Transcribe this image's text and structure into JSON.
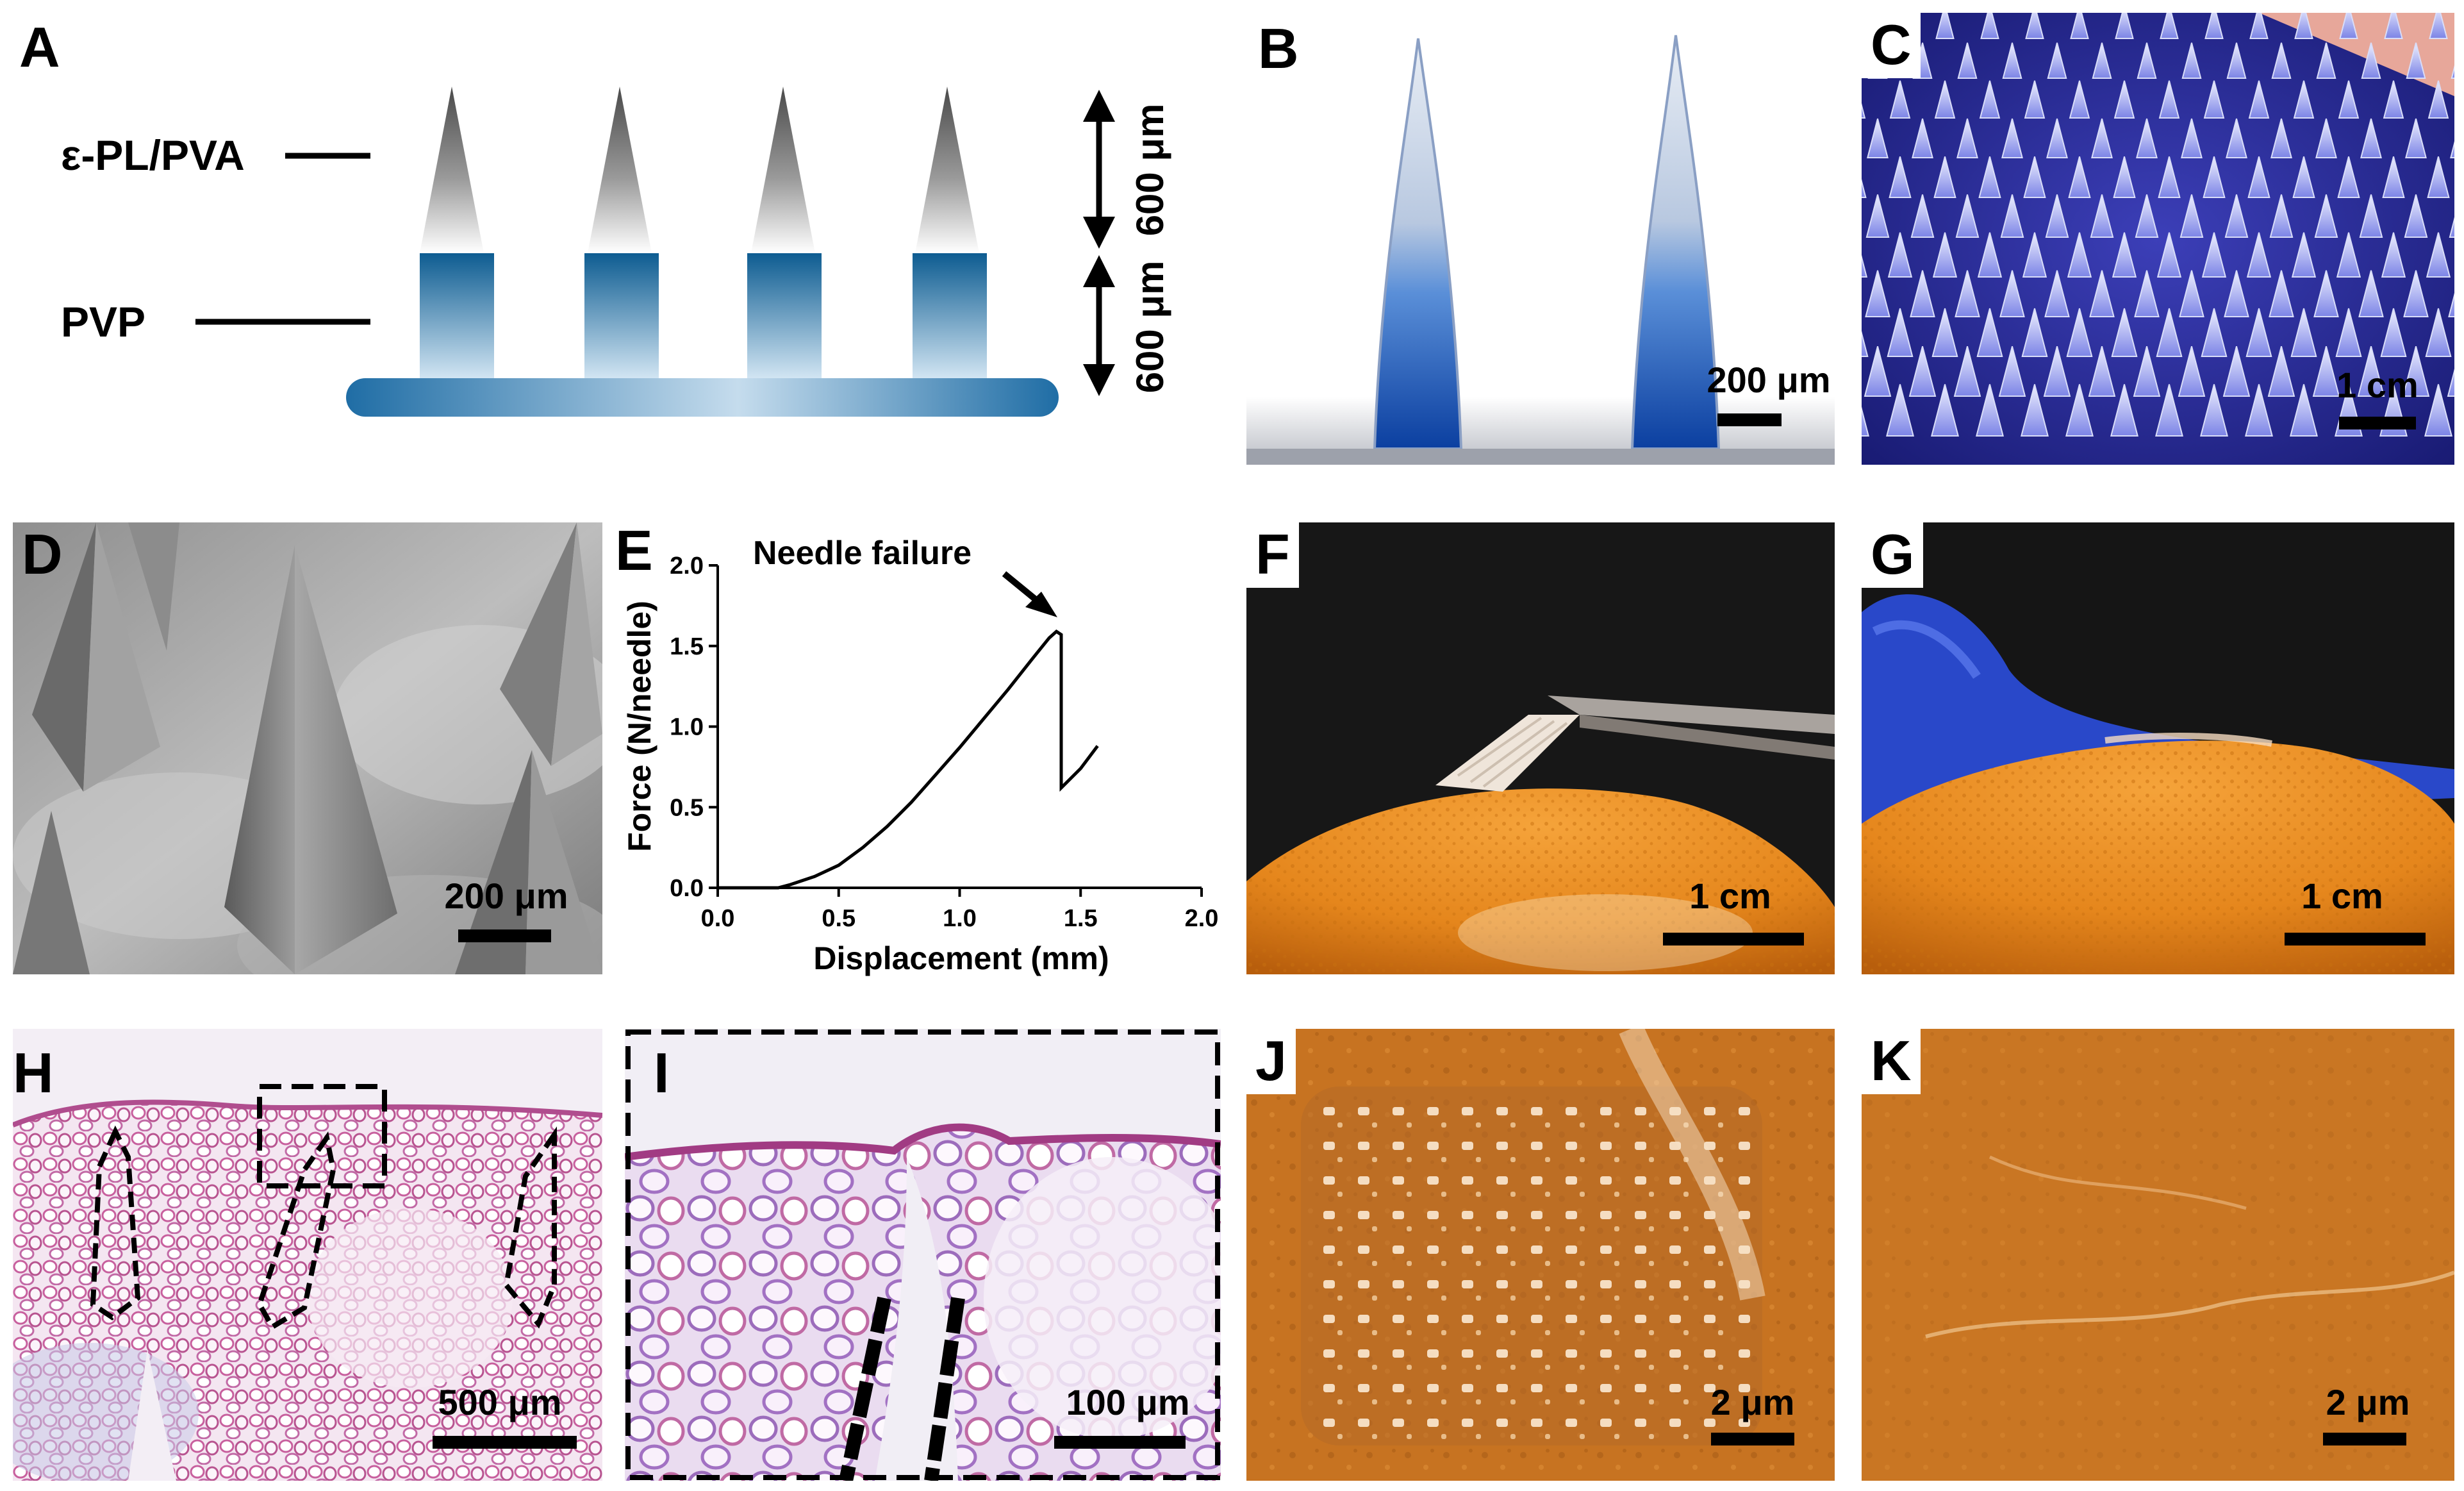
{
  "panels": {
    "a": {
      "letter": "A",
      "layer_top": "ε-PL/PVA",
      "layer_bottom": "PVP",
      "dim_top": "600 μm",
      "dim_bottom": "600 μm"
    },
    "b": {
      "letter": "B",
      "scale": "200 μm"
    },
    "c": {
      "letter": "C",
      "scale": "1 cm"
    },
    "d": {
      "letter": "D",
      "scale": "200 μm"
    },
    "e": {
      "letter": "E"
    },
    "f": {
      "letter": "F",
      "scale": "1 cm"
    },
    "g": {
      "letter": "G",
      "scale": "1 cm"
    },
    "h": {
      "letter": "H",
      "scale": "500 μm"
    },
    "i": {
      "letter": "I",
      "scale": "100 μm"
    },
    "j": {
      "letter": "J",
      "scale": "2 μm"
    },
    "k": {
      "letter": "K",
      "scale": "2 μm"
    }
  },
  "chart_data": {
    "type": "line",
    "xlabel": "Displacement (mm)",
    "ylabel": "Force (N/needle)",
    "xlim": [
      0,
      2
    ],
    "ylim": [
      0,
      2
    ],
    "xticks": [
      "0.0",
      "0.5",
      "1.0",
      "1.5",
      "2.0"
    ],
    "yticks": [
      "0.0",
      "0.5",
      "1.0",
      "1.5",
      "2.0"
    ],
    "annotation": "Needle failure",
    "series": [
      {
        "x": [
          0.0,
          0.25,
          0.3,
          0.4,
          0.5,
          0.6,
          0.7,
          0.8,
          0.9,
          1.0,
          1.1,
          1.2,
          1.3,
          1.37,
          1.4,
          1.42,
          1.42,
          1.5,
          1.57
        ],
        "y": [
          0.0,
          0.0,
          0.02,
          0.07,
          0.14,
          0.25,
          0.38,
          0.53,
          0.7,
          0.87,
          1.05,
          1.23,
          1.42,
          1.55,
          1.59,
          1.57,
          0.62,
          0.74,
          0.88
        ]
      }
    ]
  }
}
